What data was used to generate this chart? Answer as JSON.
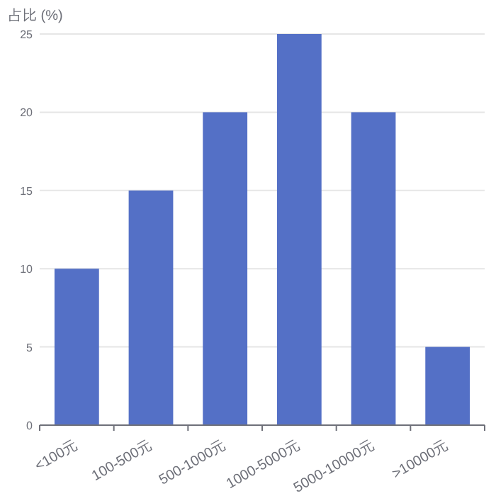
{
  "chart_data": {
    "type": "bar",
    "ylabel": "占比 (%)",
    "categories": [
      "<100元",
      "100-500元",
      "500-1000元",
      "1000-5000元",
      "5000-10000元",
      ">10000元"
    ],
    "values": [
      10,
      15,
      20,
      25,
      20,
      5
    ],
    "color": "#5470c6",
    "ylim": [
      0,
      25
    ],
    "yticks": [
      0,
      5,
      10,
      15,
      20,
      25
    ],
    "grid": "y"
  }
}
